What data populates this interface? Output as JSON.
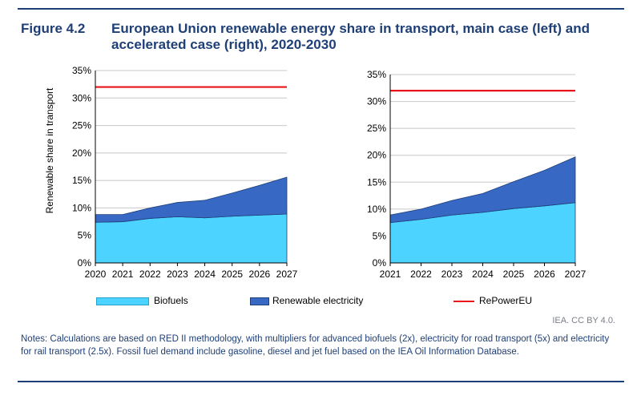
{
  "figure": {
    "label": "Figure 4.2",
    "title": "European Union renewable energy share in transport, main case (left) and accelerated case (right), 2020-2030"
  },
  "legend": {
    "biofuels": "Biofuels",
    "renewable_electricity": "Renewable electricity",
    "repowereu": "RePowerEU"
  },
  "colors": {
    "biofuels": "#4dd3ff",
    "renewable_electricity": "#3768c4",
    "repowereu": "#e8141c",
    "title": "#1f3f77"
  },
  "source": "IEA. CC BY 4.0.",
  "notes": "Notes: Calculations are based on RED II methodology, with multipliers for advanced biofuels (2x), electricity for road transport (5x) and electricity for rail transport (2.5x). Fossil fuel demand include gasoline, diesel and jet fuel based on the IEA Oil Information Database.",
  "chart_data": [
    {
      "type": "area",
      "stacked": true,
      "title": "",
      "xlabel": "",
      "ylabel": "Renewable share in transport",
      "x": [
        "2020",
        "2021",
        "2022",
        "2023",
        "2024",
        "2025",
        "2026",
        "2027"
      ],
      "ylim": [
        0,
        35
      ],
      "yticks": [
        "0%",
        "5%",
        "10%",
        "15%",
        "20%",
        "25%",
        "30%",
        "35%"
      ],
      "grid": true,
      "series": [
        {
          "name": "Biofuels",
          "values": [
            7.4,
            7.5,
            8.1,
            8.4,
            8.2,
            8.5,
            8.7,
            8.9
          ]
        },
        {
          "name": "Renewable electricity",
          "values": [
            1.4,
            1.3,
            1.9,
            2.6,
            3.2,
            4.2,
            5.4,
            6.7
          ]
        }
      ],
      "reference_line": {
        "name": "RePowerEU",
        "value": 32
      }
    },
    {
      "type": "area",
      "stacked": true,
      "title": "",
      "xlabel": "",
      "ylabel": "",
      "x": [
        "2021",
        "2022",
        "2023",
        "2024",
        "2025",
        "2026",
        "2027"
      ],
      "ylim": [
        0,
        35
      ],
      "yticks": [
        "0%",
        "5%",
        "10%",
        "15%",
        "20%",
        "25%",
        "30%",
        "35%"
      ],
      "grid": true,
      "series": [
        {
          "name": "Biofuels",
          "values": [
            7.5,
            8.1,
            8.9,
            9.4,
            10.1,
            10.6,
            11.2
          ]
        },
        {
          "name": "Renewable electricity",
          "values": [
            1.4,
            1.9,
            2.7,
            3.5,
            5.0,
            6.6,
            8.5
          ]
        }
      ],
      "reference_line": {
        "name": "RePowerEU",
        "value": 32
      }
    }
  ]
}
